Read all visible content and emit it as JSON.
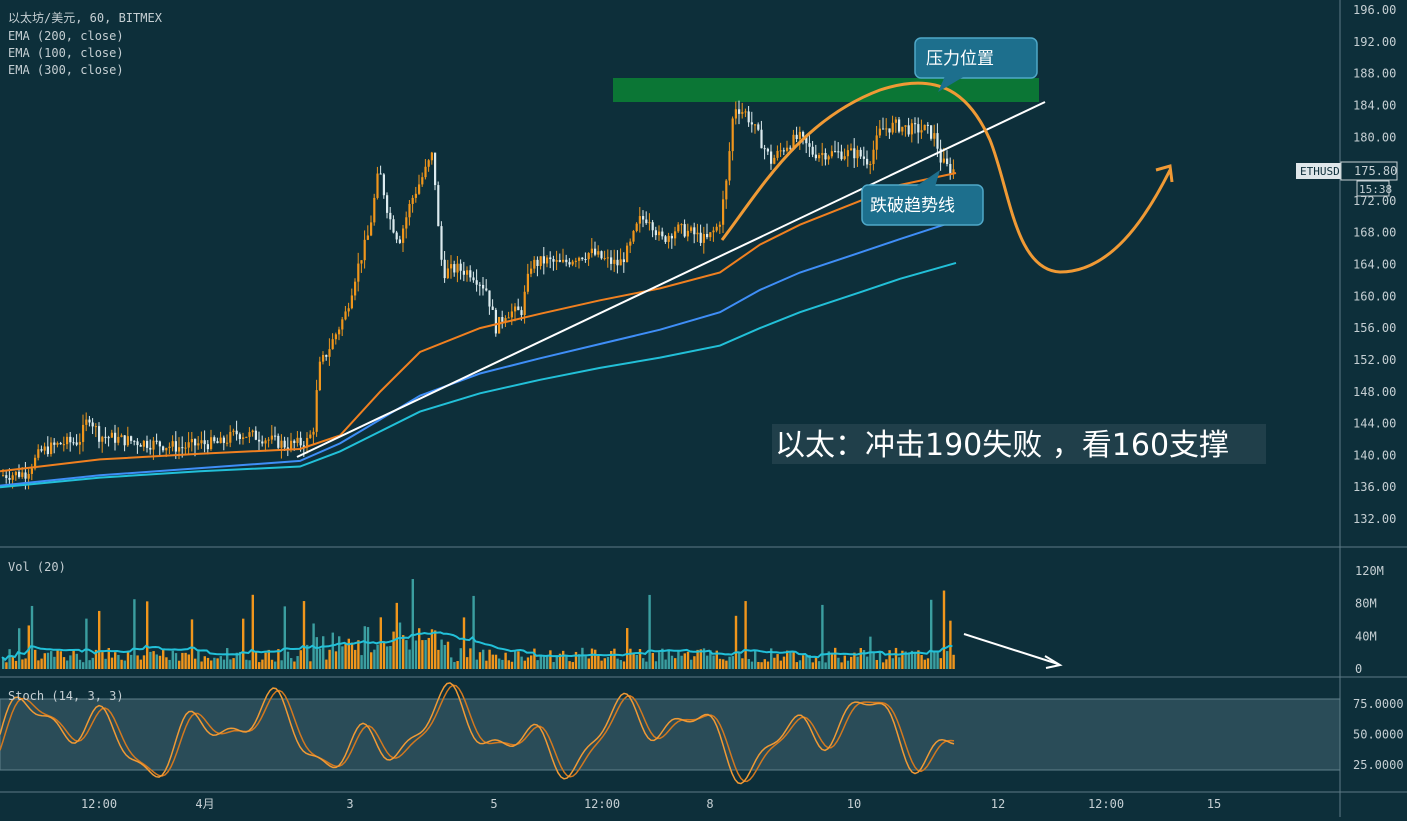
{
  "chart_data": {
    "type": "candlestick",
    "symbol_line": "以太坊/美元, 60, BITMEX",
    "indicators": [
      "EMA (200, close)",
      "EMA (100, close)",
      "EMA (300, close)"
    ],
    "price_axis": {
      "ticks": [
        "196.00",
        "192.00",
        "188.00",
        "184.00",
        "180.00",
        "176.00",
        "172.00",
        "168.00",
        "164.00",
        "160.00",
        "156.00",
        "152.00",
        "148.00",
        "144.00",
        "140.00",
        "136.00",
        "132.00"
      ],
      "ylim": [
        130,
        197
      ]
    },
    "last_price": {
      "symbol": "ETHUSD",
      "value": "175.80",
      "countdown": "15:38"
    },
    "time_axis": [
      "12:00",
      "4月",
      "3",
      "5",
      "12:00",
      "8",
      "10",
      "12",
      "12:00",
      "15"
    ],
    "price_path": [
      [
        0,
        137.5
      ],
      [
        25,
        137.8
      ],
      [
        40,
        140.5
      ],
      [
        60,
        141.5
      ],
      [
        78,
        141.8
      ],
      [
        88,
        145
      ],
      [
        98,
        142.5
      ],
      [
        120,
        142
      ],
      [
        150,
        141.5
      ],
      [
        180,
        141
      ],
      [
        200,
        141.5
      ],
      [
        220,
        141.5
      ],
      [
        235,
        142.8
      ],
      [
        260,
        142.3
      ],
      [
        285,
        141.3
      ],
      [
        305,
        141.6
      ],
      [
        312,
        143
      ],
      [
        318,
        151
      ],
      [
        330,
        154
      ],
      [
        345,
        158
      ],
      [
        355,
        163
      ],
      [
        368,
        168
      ],
      [
        378,
        176
      ],
      [
        388,
        170
      ],
      [
        398,
        167
      ],
      [
        410,
        172
      ],
      [
        425,
        176
      ],
      [
        432,
        178
      ],
      [
        438,
        167
      ],
      [
        442,
        163
      ],
      [
        455,
        163.5
      ],
      [
        470,
        163
      ],
      [
        485,
        161
      ],
      [
        495,
        156
      ],
      [
        505,
        158
      ],
      [
        520,
        158
      ],
      [
        530,
        164
      ],
      [
        545,
        164.5
      ],
      [
        560,
        164
      ],
      [
        575,
        165
      ],
      [
        590,
        165.5
      ],
      [
        605,
        164.5
      ],
      [
        618,
        164
      ],
      [
        628,
        166
      ],
      [
        638,
        169.5
      ],
      [
        648,
        170
      ],
      [
        660,
        167
      ],
      [
        675,
        168.5
      ],
      [
        690,
        168
      ],
      [
        705,
        167
      ],
      [
        718,
        169
      ],
      [
        725,
        174
      ],
      [
        733,
        184
      ],
      [
        745,
        183
      ],
      [
        758,
        180
      ],
      [
        770,
        177
      ],
      [
        785,
        179
      ],
      [
        798,
        180
      ],
      [
        812,
        178
      ],
      [
        825,
        178
      ],
      [
        840,
        178
      ],
      [
        855,
        178
      ],
      [
        868,
        177
      ],
      [
        880,
        181
      ],
      [
        895,
        181.5
      ],
      [
        910,
        181
      ],
      [
        925,
        181
      ],
      [
        934,
        180
      ],
      [
        940,
        177
      ],
      [
        948,
        176
      ],
      [
        956,
        175.8
      ]
    ],
    "ema": [
      {
        "name": "EMA (200, close)",
        "color": "#f08020",
        "points": [
          [
            0,
            138
          ],
          [
            100,
            139.5
          ],
          [
            200,
            140.2
          ],
          [
            300,
            140.8
          ],
          [
            340,
            142.5
          ],
          [
            380,
            148
          ],
          [
            420,
            153
          ],
          [
            480,
            156
          ],
          [
            540,
            157.8
          ],
          [
            600,
            159.5
          ],
          [
            660,
            161
          ],
          [
            720,
            163
          ],
          [
            760,
            166.5
          ],
          [
            800,
            169
          ],
          [
            860,
            172
          ],
          [
            900,
            174
          ],
          [
            956,
            175.5
          ]
        ]
      },
      {
        "name": "EMA (100, close)",
        "color": "#3f8ef7",
        "points": [
          [
            0,
            136.2
          ],
          [
            100,
            137.5
          ],
          [
            200,
            138.4
          ],
          [
            300,
            139.3
          ],
          [
            340,
            141.5
          ],
          [
            380,
            144.5
          ],
          [
            420,
            147.5
          ],
          [
            480,
            150.3
          ],
          [
            540,
            152.2
          ],
          [
            600,
            154
          ],
          [
            660,
            155.8
          ],
          [
            720,
            158
          ],
          [
            760,
            160.8
          ],
          [
            800,
            163
          ],
          [
            860,
            165.5
          ],
          [
            900,
            167.2
          ],
          [
            956,
            169.5
          ]
        ]
      },
      {
        "name": "EMA (300, close)",
        "color": "#22c0d8",
        "points": [
          [
            0,
            136
          ],
          [
            100,
            137.2
          ],
          [
            200,
            138
          ],
          [
            300,
            138.6
          ],
          [
            340,
            140.5
          ],
          [
            380,
            143
          ],
          [
            420,
            145.5
          ],
          [
            480,
            147.8
          ],
          [
            540,
            149.5
          ],
          [
            600,
            151
          ],
          [
            660,
            152.3
          ],
          [
            720,
            153.8
          ],
          [
            760,
            156
          ],
          [
            800,
            158
          ],
          [
            860,
            160.5
          ],
          [
            900,
            162.2
          ],
          [
            956,
            164.2
          ]
        ]
      }
    ],
    "annotations": {
      "main": "以太：冲击190失败 ，看160支撑",
      "resistance": "压力位置",
      "break": "跌破趋势线"
    },
    "volume": {
      "label": "Vol (20)",
      "ticks": [
        "120M",
        "80M",
        "40M",
        "0"
      ],
      "ylim": [
        0,
        140
      ]
    },
    "stoch": {
      "label": "Stoch (14, 3, 3)",
      "ticks": [
        "75.0000",
        "50.0000",
        "25.0000"
      ],
      "band": [
        20,
        80
      ],
      "ylim": [
        0,
        100
      ]
    },
    "colors": {
      "bg": "#0d2f3a",
      "up": "#f0961c",
      "down": "#dcebef",
      "resistance_zone": "#0c7a35",
      "volume_up": "#f0961c",
      "volume_down": "#3b9ea0",
      "volume_ma": "#22c0d8",
      "stoch": "#f09a35",
      "callout_fill": "#1d6f8d"
    }
  }
}
